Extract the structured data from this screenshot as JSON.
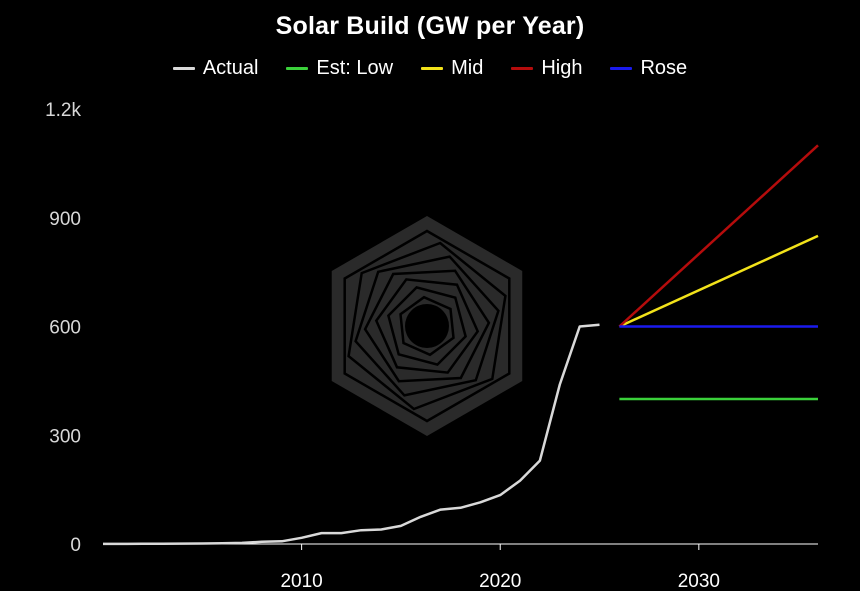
{
  "colors": {
    "background": "#000000",
    "axis": "#ffffff",
    "tick_text": "#d8d8d8",
    "watermark": "#2a2a2a"
  },
  "watermark_icon": "hexagon-spiral-logo-icon",
  "chart_data": {
    "type": "line",
    "title": "Solar Build (GW per Year)",
    "xlabel": "",
    "ylabel": "",
    "xlim": [
      2000,
      2036
    ],
    "ylim": [
      0,
      1200
    ],
    "grid": false,
    "legend_position": "top-center",
    "x_ticks": [
      2010,
      2020,
      2030
    ],
    "x_tick_labels": [
      "2010",
      "2020",
      "2030"
    ],
    "y_ticks": [
      0,
      300,
      600,
      900,
      1200
    ],
    "y_tick_labels": [
      "0",
      "300",
      "600",
      "900",
      "1.2k"
    ],
    "series": [
      {
        "name": "Actual",
        "color": "#d9d9d9",
        "x": [
          2000,
          2001,
          2002,
          2003,
          2004,
          2005,
          2006,
          2007,
          2008,
          2009,
          2010,
          2011,
          2012,
          2013,
          2014,
          2015,
          2016,
          2017,
          2018,
          2019,
          2020,
          2021,
          2022,
          2023,
          2024,
          2025
        ],
        "y": [
          0.3,
          0.4,
          0.5,
          0.6,
          1,
          1.5,
          2,
          3,
          6,
          7.5,
          17,
          30,
          30,
          38,
          40,
          50,
          75,
          95,
          100,
          115,
          135,
          175,
          230,
          440,
          600,
          605
        ]
      },
      {
        "name": "Est: Low",
        "color": "#3bd13b",
        "x": [
          2026,
          2036
        ],
        "y": [
          400,
          400
        ]
      },
      {
        "name": "Mid",
        "color": "#f2e21a",
        "x": [
          2026,
          2036
        ],
        "y": [
          600,
          850
        ]
      },
      {
        "name": "High",
        "color": "#b50c0c",
        "x": [
          2026,
          2036
        ],
        "y": [
          600,
          1100
        ]
      },
      {
        "name": "Rose",
        "color": "#1a1aee",
        "x": [
          2026,
          2036
        ],
        "y": [
          600,
          600
        ]
      }
    ]
  }
}
